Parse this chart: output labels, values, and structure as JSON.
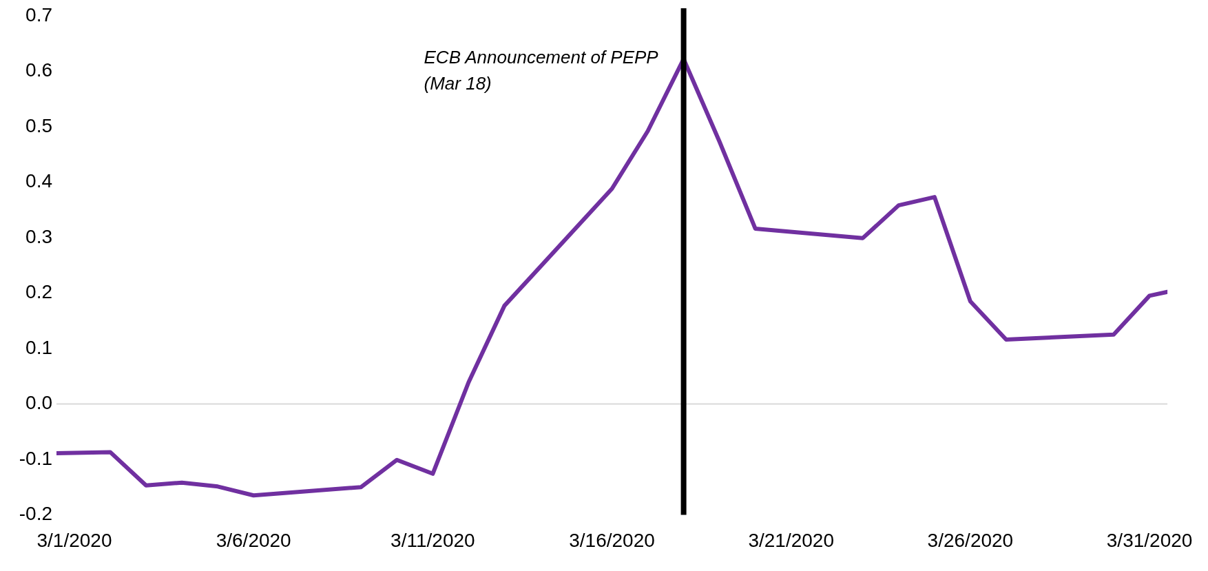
{
  "chart_data": {
    "type": "line",
    "x": [
      "2020-02-29T12:00",
      "2020-03-02",
      "2020-03-03",
      "2020-03-04",
      "2020-03-05",
      "2020-03-06",
      "2020-03-09",
      "2020-03-10",
      "2020-03-11",
      "2020-03-12",
      "2020-03-13",
      "2020-03-16",
      "2020-03-17",
      "2020-03-18",
      "2020-03-19",
      "2020-03-20",
      "2020-03-23",
      "2020-03-24",
      "2020-03-25",
      "2020-03-26",
      "2020-03-27",
      "2020-03-30",
      "2020-03-31",
      "2020-03-31T12:00"
    ],
    "series": [
      {
        "color": "#7030a0",
        "values": [
          -0.089,
          -0.087,
          -0.147,
          -0.142,
          -0.149,
          -0.165,
          -0.15,
          -0.101,
          -0.126,
          0.039,
          0.177,
          0.388,
          0.492,
          0.622,
          0.473,
          0.316,
          0.299,
          0.358,
          0.373,
          0.185,
          0.116,
          0.125,
          0.195,
          0.202
        ]
      }
    ],
    "xlim": [
      "2020-02-29T12:00",
      "2020-03-31T12:00"
    ],
    "xticks": [
      {
        "value": "2020-03-01",
        "label": "3/1/2020"
      },
      {
        "value": "2020-03-06",
        "label": "3/6/2020"
      },
      {
        "value": "2020-03-11",
        "label": "3/11/2020"
      },
      {
        "value": "2020-03-16",
        "label": "3/16/2020"
      },
      {
        "value": "2020-03-21",
        "label": "3/21/2020"
      },
      {
        "value": "2020-03-26",
        "label": "3/26/2020"
      },
      {
        "value": "2020-03-31",
        "label": "3/31/2020"
      }
    ],
    "ylim": [
      -0.2,
      0.7
    ],
    "yticks": [
      -0.2,
      -0.1,
      {
        "value": 0,
        "label": "0.0"
      },
      0.1,
      0.2,
      0.3,
      0.4,
      0.5,
      0.6,
      0.7
    ],
    "ref_lines": [
      {
        "axis": "x",
        "value": "2020-03-18",
        "label": "ECB Announcement of PEPP\n(Mar 18)",
        "color": "#000000"
      }
    ],
    "marker": "none",
    "line_style": "solid"
  }
}
